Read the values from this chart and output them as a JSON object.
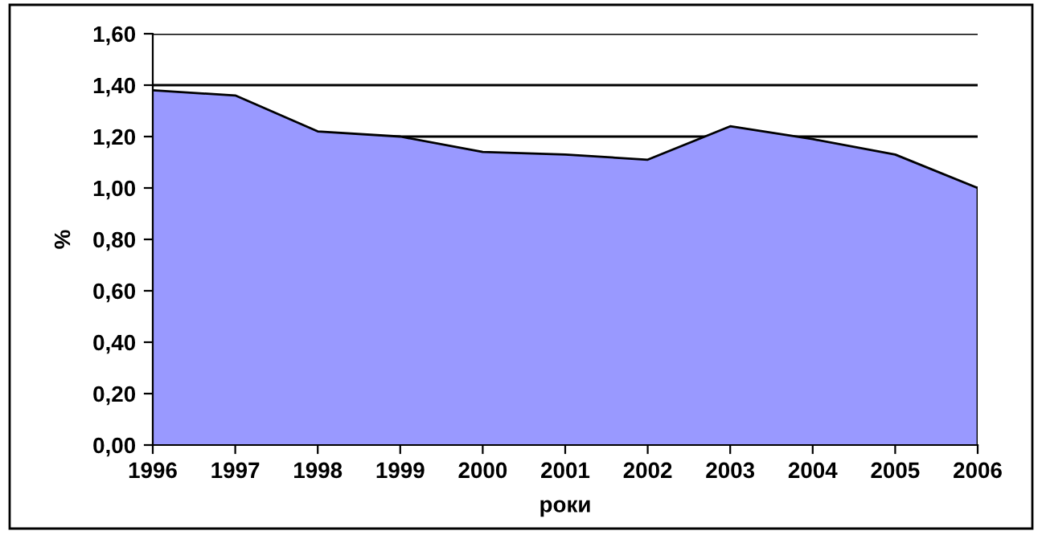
{
  "chart_data": {
    "type": "area",
    "xlabel": "роки",
    "ylabel": "%",
    "x": [
      1996,
      1997,
      1998,
      1999,
      2000,
      2001,
      2002,
      2003,
      2004,
      2005,
      2006
    ],
    "series": [
      {
        "color": "#9999ff",
        "values": [
          1.38,
          1.36,
          1.22,
          1.2,
          1.14,
          1.13,
          1.11,
          1.24,
          1.19,
          1.13,
          1.0
        ]
      }
    ],
    "xlim": [
      1996,
      2006
    ],
    "xticks": [
      1996,
      1997,
      1998,
      1999,
      2000,
      2001,
      2002,
      2003,
      2004,
      2005,
      2006
    ],
    "ylim": [
      0,
      1.6
    ],
    "yticks": [
      {
        "value": 0,
        "label": "0,00"
      },
      {
        "value": 0.2,
        "label": "0,20"
      },
      {
        "value": 0.4,
        "label": "0,40"
      },
      {
        "value": 0.6,
        "label": "0,60"
      },
      {
        "value": 0.8,
        "label": "0,80"
      },
      {
        "value": 1.0,
        "label": "1,00"
      },
      {
        "value": 1.2,
        "label": "1,20"
      },
      {
        "value": 1.4,
        "label": "1,40"
      },
      {
        "value": 1.6,
        "label": "1,60"
      }
    ],
    "grid": "y",
    "legend": false
  }
}
